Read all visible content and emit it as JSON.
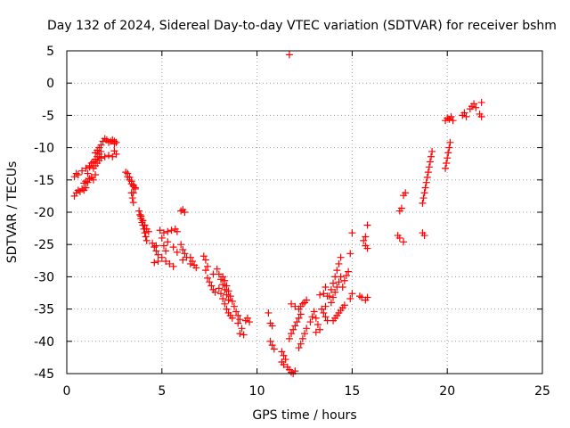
{
  "chart_data": {
    "type": "scatter",
    "title": "Day 132 of 2024, Sidereal Day-to-day VTEC variation (SDTVAR) for receiver bshm",
    "xlabel": "GPS time / hours",
    "ylabel": "SDTVAR / TECUs",
    "xlim": [
      0,
      25
    ],
    "ylim": [
      -45,
      5
    ],
    "xticks": [
      0,
      5,
      10,
      15,
      20,
      25
    ],
    "yticks": [
      5,
      0,
      -5,
      -10,
      -15,
      -20,
      -25,
      -30,
      -35,
      -40,
      -45
    ],
    "grid": true,
    "marker": "plus",
    "color": "#ff0000",
    "series": [
      {
        "name": "SDTVAR",
        "points": [
          [
            0.4,
            -17.5
          ],
          [
            0.5,
            -17.0
          ],
          [
            0.6,
            -16.6
          ],
          [
            0.7,
            -16.8
          ],
          [
            0.8,
            -16.4
          ],
          [
            0.9,
            -16.6
          ],
          [
            1.0,
            -16.2
          ],
          [
            0.4,
            -14.5
          ],
          [
            0.5,
            -14.0
          ],
          [
            0.6,
            -14.2
          ],
          [
            0.8,
            -13.6
          ],
          [
            1.0,
            -13.2
          ],
          [
            1.1,
            -14.0
          ],
          [
            1.2,
            -13.0
          ],
          [
            0.9,
            -15.5
          ],
          [
            1.0,
            -15.2
          ],
          [
            1.1,
            -15.4
          ],
          [
            1.2,
            -14.8
          ],
          [
            1.3,
            -14.6
          ],
          [
            1.4,
            -15.0
          ],
          [
            1.5,
            -14.2
          ],
          [
            1.2,
            -12.8
          ],
          [
            1.3,
            -12.4
          ],
          [
            1.4,
            -12.2
          ],
          [
            1.5,
            -11.8
          ],
          [
            1.6,
            -11.4
          ],
          [
            1.7,
            -11.0
          ],
          [
            1.8,
            -10.6
          ],
          [
            1.4,
            -13.2
          ],
          [
            1.5,
            -12.8
          ],
          [
            1.6,
            -12.4
          ],
          [
            1.7,
            -12.0
          ],
          [
            1.8,
            -11.6
          ],
          [
            1.5,
            -10.8
          ],
          [
            1.6,
            -10.4
          ],
          [
            1.7,
            -10.0
          ],
          [
            1.8,
            -9.6
          ],
          [
            1.9,
            -9.0
          ],
          [
            2.0,
            -8.6
          ],
          [
            2.1,
            -8.8
          ],
          [
            2.2,
            -9.2
          ],
          [
            1.8,
            -11.6
          ],
          [
            2.0,
            -11.4
          ],
          [
            2.2,
            -11.2
          ],
          [
            2.4,
            -11.4
          ],
          [
            2.6,
            -11.0
          ],
          [
            2.5,
            -10.5
          ],
          [
            2.3,
            -9.0
          ],
          [
            2.4,
            -8.8
          ],
          [
            2.5,
            -9.0
          ],
          [
            2.6,
            -9.2
          ],
          [
            2.5,
            -9.4
          ],
          [
            3.1,
            -13.8
          ],
          [
            3.2,
            -14.0
          ],
          [
            3.3,
            -14.6
          ],
          [
            3.4,
            -15.2
          ],
          [
            3.5,
            -15.8
          ],
          [
            3.6,
            -16.4
          ],
          [
            3.5,
            -17.0
          ],
          [
            3.2,
            -14.5
          ],
          [
            3.3,
            -15.0
          ],
          [
            3.4,
            -15.6
          ],
          [
            3.5,
            -16.0
          ],
          [
            3.6,
            -16.2
          ],
          [
            3.4,
            -17.0
          ],
          [
            3.45,
            -17.8
          ],
          [
            3.5,
            -18.5
          ],
          [
            3.8,
            -19.8
          ],
          [
            3.85,
            -20.4
          ],
          [
            3.9,
            -21.0
          ],
          [
            3.95,
            -21.6
          ],
          [
            4.0,
            -22.0
          ],
          [
            4.05,
            -22.6
          ],
          [
            4.1,
            -23.2
          ],
          [
            4.15,
            -23.8
          ],
          [
            4.2,
            -24.4
          ],
          [
            3.9,
            -20.6
          ],
          [
            4.0,
            -21.3
          ],
          [
            4.1,
            -22.0
          ],
          [
            4.2,
            -22.6
          ],
          [
            4.3,
            -23.0
          ],
          [
            4.5,
            -24.8
          ],
          [
            4.6,
            -25.4
          ],
          [
            4.7,
            -26.0
          ],
          [
            4.8,
            -26.6
          ],
          [
            4.7,
            -25.2
          ],
          [
            4.6,
            -27.8
          ],
          [
            4.8,
            -27.6
          ],
          [
            5.0,
            -27.0
          ],
          [
            5.2,
            -27.6
          ],
          [
            5.4,
            -28.0
          ],
          [
            5.6,
            -28.4
          ],
          [
            4.9,
            -22.8
          ],
          [
            5.1,
            -23.2
          ],
          [
            5.3,
            -23.0
          ],
          [
            5.5,
            -22.8
          ],
          [
            5.7,
            -22.6
          ],
          [
            5.8,
            -23.0
          ],
          [
            5.0,
            -24.0
          ],
          [
            5.1,
            -25.2
          ],
          [
            5.2,
            -26.0
          ],
          [
            5.3,
            -24.6
          ],
          [
            5.6,
            -25.4
          ],
          [
            5.8,
            -26.2
          ],
          [
            6.0,
            -19.8
          ],
          [
            6.1,
            -19.6
          ],
          [
            6.2,
            -20.0
          ],
          [
            6.0,
            -25.0
          ],
          [
            6.1,
            -25.8
          ],
          [
            6.2,
            -26.4
          ],
          [
            6.1,
            -27.4
          ],
          [
            6.3,
            -27.0
          ],
          [
            6.5,
            -27.0
          ],
          [
            6.6,
            -27.6
          ],
          [
            6.7,
            -28.2
          ],
          [
            6.5,
            -28.0
          ],
          [
            6.8,
            -28.6
          ],
          [
            7.2,
            -26.8
          ],
          [
            7.3,
            -27.4
          ],
          [
            7.4,
            -28.4
          ],
          [
            7.3,
            -29.0
          ],
          [
            7.4,
            -30.2
          ],
          [
            7.5,
            -30.8
          ],
          [
            7.6,
            -31.4
          ],
          [
            7.7,
            -32.0
          ],
          [
            7.8,
            -32.4
          ],
          [
            7.7,
            -29.6
          ],
          [
            7.9,
            -28.8
          ],
          [
            8.0,
            -29.6
          ],
          [
            8.1,
            -30.4
          ],
          [
            8.2,
            -31.2
          ],
          [
            8.3,
            -32.0
          ],
          [
            8.4,
            -32.8
          ],
          [
            8.5,
            -33.6
          ],
          [
            8.0,
            -31.8
          ],
          [
            8.1,
            -32.6
          ],
          [
            8.2,
            -33.4
          ],
          [
            8.3,
            -34.2
          ],
          [
            8.4,
            -35.0
          ],
          [
            8.5,
            -35.6
          ],
          [
            8.6,
            -36.0
          ],
          [
            8.7,
            -36.4
          ],
          [
            8.2,
            -30.0
          ],
          [
            8.3,
            -30.6
          ],
          [
            8.4,
            -31.4
          ],
          [
            8.5,
            -32.2
          ],
          [
            8.6,
            -33.0
          ],
          [
            8.7,
            -33.8
          ],
          [
            8.8,
            -34.6
          ],
          [
            8.9,
            -35.4
          ],
          [
            9.0,
            -36.0
          ],
          [
            9.1,
            -36.6
          ],
          [
            9.0,
            -37.2
          ],
          [
            9.2,
            -38.0
          ],
          [
            9.1,
            -38.8
          ],
          [
            9.3,
            -39.0
          ],
          [
            9.4,
            -36.8
          ],
          [
            9.5,
            -36.4
          ],
          [
            9.6,
            -37.0
          ],
          [
            10.6,
            -35.6
          ],
          [
            10.7,
            -37.2
          ],
          [
            10.8,
            -37.6
          ],
          [
            10.7,
            -40.0
          ],
          [
            10.8,
            -40.6
          ],
          [
            10.9,
            -41.2
          ],
          [
            11.3,
            -41.6
          ],
          [
            11.4,
            -42.2
          ],
          [
            11.5,
            -42.8
          ],
          [
            11.3,
            -43.2
          ],
          [
            11.4,
            -43.6
          ],
          [
            11.7,
            4.4
          ],
          [
            11.6,
            -44.0
          ],
          [
            11.7,
            -44.4
          ],
          [
            11.8,
            -44.8
          ],
          [
            11.9,
            -45.0
          ],
          [
            12.0,
            -44.6
          ],
          [
            11.8,
            -34.2
          ],
          [
            12.0,
            -34.6
          ],
          [
            12.2,
            -35.0
          ],
          [
            12.3,
            -34.6
          ],
          [
            12.4,
            -34.2
          ],
          [
            12.5,
            -34.0
          ],
          [
            12.6,
            -33.6
          ],
          [
            11.7,
            -39.6
          ],
          [
            11.8,
            -38.8
          ],
          [
            11.9,
            -38.2
          ],
          [
            12.0,
            -37.6
          ],
          [
            12.1,
            -37.0
          ],
          [
            12.2,
            -36.4
          ],
          [
            12.3,
            -35.8
          ],
          [
            12.2,
            -41.0
          ],
          [
            12.3,
            -40.4
          ],
          [
            12.4,
            -39.6
          ],
          [
            12.5,
            -38.8
          ],
          [
            12.6,
            -38.0
          ],
          [
            12.8,
            -37.0
          ],
          [
            12.9,
            -36.2
          ],
          [
            13.0,
            -35.4
          ],
          [
            13.1,
            -36.4
          ],
          [
            13.2,
            -37.4
          ],
          [
            13.3,
            -38.2
          ],
          [
            13.1,
            -38.6
          ],
          [
            13.4,
            -35.0
          ],
          [
            13.5,
            -35.6
          ],
          [
            13.6,
            -36.2
          ],
          [
            13.7,
            -36.8
          ],
          [
            13.6,
            -34.6
          ],
          [
            13.3,
            -32.8
          ],
          [
            13.5,
            -32.6
          ],
          [
            13.7,
            -33.0
          ],
          [
            13.6,
            -31.6
          ],
          [
            13.8,
            -33.0
          ],
          [
            13.9,
            -32.0
          ],
          [
            14.0,
            -31.0
          ],
          [
            14.1,
            -30.0
          ],
          [
            14.2,
            -29.0
          ],
          [
            14.3,
            -28.0
          ],
          [
            14.4,
            -27.0
          ],
          [
            13.9,
            -34.0
          ],
          [
            14.0,
            -33.2
          ],
          [
            14.1,
            -32.4
          ],
          [
            14.2,
            -31.6
          ],
          [
            14.3,
            -30.8
          ],
          [
            14.4,
            -30.0
          ],
          [
            14.0,
            -36.8
          ],
          [
            14.1,
            -36.4
          ],
          [
            14.2,
            -36.0
          ],
          [
            14.3,
            -35.6
          ],
          [
            14.4,
            -35.2
          ],
          [
            14.5,
            -34.8
          ],
          [
            14.6,
            -34.4
          ],
          [
            14.5,
            -31.6
          ],
          [
            14.6,
            -30.6
          ],
          [
            14.7,
            -29.8
          ],
          [
            14.8,
            -29.2
          ],
          [
            14.9,
            -33.4
          ],
          [
            15.0,
            -32.6
          ],
          [
            14.9,
            -26.4
          ],
          [
            15.0,
            -23.2
          ],
          [
            15.4,
            -33.0
          ],
          [
            15.5,
            -33.2
          ],
          [
            15.7,
            -33.6
          ],
          [
            15.8,
            -33.2
          ],
          [
            15.6,
            -24.4
          ],
          [
            15.7,
            -25.2
          ],
          [
            15.8,
            -25.6
          ],
          [
            15.7,
            -23.8
          ],
          [
            15.8,
            -22.0
          ],
          [
            17.4,
            -23.6
          ],
          [
            17.5,
            -24.0
          ],
          [
            17.7,
            -24.6
          ],
          [
            17.5,
            -19.8
          ],
          [
            17.6,
            -19.4
          ],
          [
            17.7,
            -17.4
          ],
          [
            17.8,
            -17.0
          ],
          [
            18.7,
            -23.2
          ],
          [
            18.8,
            -23.6
          ],
          [
            18.7,
            -18.6
          ],
          [
            18.75,
            -17.8
          ],
          [
            18.8,
            -17.0
          ],
          [
            18.85,
            -16.2
          ],
          [
            18.9,
            -15.4
          ],
          [
            18.95,
            -14.6
          ],
          [
            19.0,
            -13.8
          ],
          [
            19.05,
            -13.0
          ],
          [
            19.1,
            -12.2
          ],
          [
            19.15,
            -11.4
          ],
          [
            19.2,
            -10.6
          ],
          [
            19.9,
            -13.2
          ],
          [
            19.95,
            -12.4
          ],
          [
            20.0,
            -11.6
          ],
          [
            20.05,
            -10.8
          ],
          [
            20.1,
            -10.0
          ],
          [
            20.15,
            -9.2
          ],
          [
            19.9,
            -5.8
          ],
          [
            20.0,
            -5.4
          ],
          [
            20.1,
            -5.6
          ],
          [
            20.2,
            -5.2
          ],
          [
            20.3,
            -5.8
          ],
          [
            20.8,
            -5.0
          ],
          [
            20.9,
            -4.6
          ],
          [
            21.0,
            -5.2
          ],
          [
            21.2,
            -4.0
          ],
          [
            21.3,
            -3.6
          ],
          [
            21.4,
            -3.2
          ],
          [
            21.5,
            -3.8
          ],
          [
            21.7,
            -4.8
          ],
          [
            21.8,
            -5.2
          ],
          [
            21.8,
            -3.0
          ]
        ]
      }
    ]
  }
}
